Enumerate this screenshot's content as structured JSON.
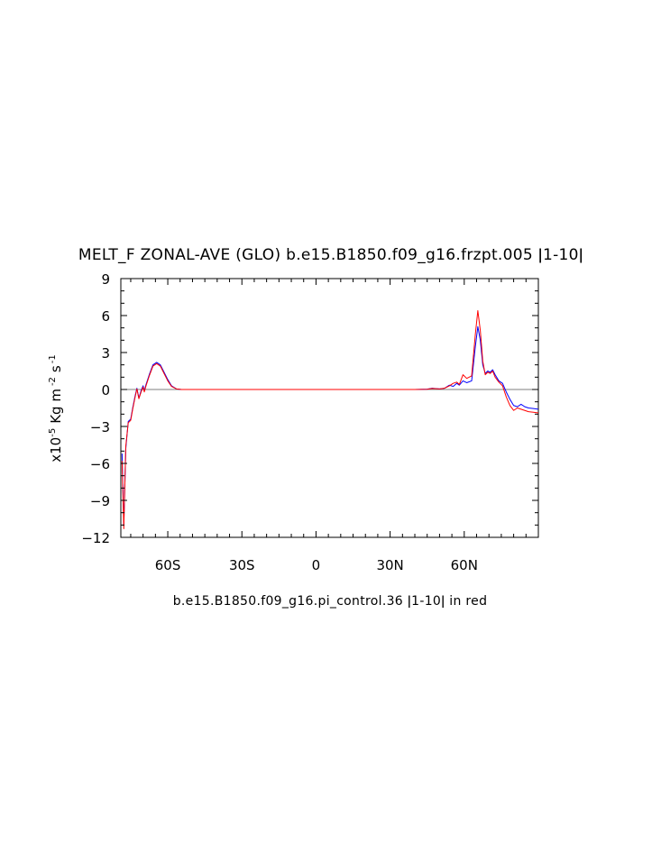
{
  "chart_data": {
    "type": "line",
    "title": "MELT_F ZONAL-AVE (GLO) b.e15.B1850.f09_g16.frzpt.005 ǀ1-10ǀ",
    "caption": "b.e15.B1850.f09_g16.pi_control.36 ǀ1-10ǀ in red",
    "ylabel": {
      "prefix": "x10",
      "exp": "-5",
      "units": "Kg m",
      "units_exp": "-2",
      "time_unit": "s",
      "time_exp": "-1"
    },
    "xlim": [
      -79,
      90
    ],
    "ylim": [
      -12,
      9
    ],
    "x_ticks": [
      {
        "value": -60,
        "label": "60S"
      },
      {
        "value": -30,
        "label": "30S"
      },
      {
        "value": 0,
        "label": "0"
      },
      {
        "value": 30,
        "label": "30N"
      },
      {
        "value": 60,
        "label": "60N"
      }
    ],
    "y_ticks": [
      {
        "value": 9,
        "label": "9"
      },
      {
        "value": 6,
        "label": "6"
      },
      {
        "value": 3,
        "label": "3"
      },
      {
        "value": 0,
        "label": "0"
      },
      {
        "value": -3,
        "label": "-3"
      },
      {
        "value": -6,
        "label": "-6"
      },
      {
        "value": -9,
        "label": "-9"
      },
      {
        "value": -12,
        "label": "-12"
      }
    ],
    "zero_line": true,
    "series": [
      {
        "color": "#0000ff",
        "points": [
          [
            -78.5,
            -5.2
          ],
          [
            -77.8,
            -11.0
          ],
          [
            -77.0,
            -4.8
          ],
          [
            -76.0,
            -2.6
          ],
          [
            -75.0,
            -2.4
          ],
          [
            -74.2,
            -1.5
          ],
          [
            -73.2,
            -0.5
          ],
          [
            -72.5,
            0.1
          ],
          [
            -71.7,
            -0.7
          ],
          [
            -70.8,
            -0.1
          ],
          [
            -70.0,
            0.3
          ],
          [
            -69.5,
            -0.1
          ],
          [
            -68.8,
            0.4
          ],
          [
            -67.5,
            1.2
          ],
          [
            -66.0,
            2.0
          ],
          [
            -64.5,
            2.2
          ],
          [
            -63.0,
            2.0
          ],
          [
            -61.5,
            1.4
          ],
          [
            -60.0,
            0.8
          ],
          [
            -58.5,
            0.3
          ],
          [
            -56.5,
            0.05
          ],
          [
            -54.5,
            0.0
          ],
          [
            -40,
            0.0
          ],
          [
            -20,
            0.0
          ],
          [
            0,
            0.0
          ],
          [
            20,
            0.0
          ],
          [
            40,
            0.0
          ],
          [
            45,
            0.03
          ],
          [
            47,
            0.1
          ],
          [
            50,
            0.05
          ],
          [
            52,
            0.1
          ],
          [
            54,
            0.35
          ],
          [
            55.5,
            0.25
          ],
          [
            57,
            0.5
          ],
          [
            58,
            0.35
          ],
          [
            59.5,
            0.7
          ],
          [
            61,
            0.55
          ],
          [
            63,
            0.7
          ],
          [
            64.5,
            3.5
          ],
          [
            65.5,
            5.1
          ],
          [
            66.5,
            4.0
          ],
          [
            67.5,
            2.0
          ],
          [
            68.5,
            1.3
          ],
          [
            69.5,
            1.5
          ],
          [
            70.5,
            1.4
          ],
          [
            71.5,
            1.6
          ],
          [
            72.5,
            1.2
          ],
          [
            74,
            0.7
          ],
          [
            75.5,
            0.5
          ],
          [
            77,
            -0.2
          ],
          [
            78.5,
            -0.8
          ],
          [
            80,
            -1.3
          ],
          [
            81.5,
            -1.4
          ],
          [
            83,
            -1.2
          ],
          [
            84.5,
            -1.4
          ],
          [
            86,
            -1.5
          ],
          [
            88,
            -1.55
          ],
          [
            90,
            -1.6
          ]
        ]
      },
      {
        "color": "#ff0000",
        "points": [
          [
            -78.5,
            -5.8
          ],
          [
            -77.8,
            -11.3
          ],
          [
            -77.0,
            -4.6
          ],
          [
            -76.0,
            -2.7
          ],
          [
            -75.0,
            -2.5
          ],
          [
            -74.2,
            -1.6
          ],
          [
            -73.2,
            -0.6
          ],
          [
            -72.5,
            0.05
          ],
          [
            -71.7,
            -0.75
          ],
          [
            -70.8,
            -0.2
          ],
          [
            -70.0,
            0.2
          ],
          [
            -69.5,
            -0.2
          ],
          [
            -68.8,
            0.3
          ],
          [
            -67.5,
            1.1
          ],
          [
            -66.0,
            1.9
          ],
          [
            -64.5,
            2.1
          ],
          [
            -63.0,
            1.9
          ],
          [
            -61.5,
            1.3
          ],
          [
            -60.0,
            0.7
          ],
          [
            -58.5,
            0.25
          ],
          [
            -56.5,
            0.05
          ],
          [
            -54.5,
            0.0
          ],
          [
            -40,
            0.0
          ],
          [
            -20,
            0.0
          ],
          [
            0,
            0.0
          ],
          [
            20,
            0.0
          ],
          [
            40,
            0.0
          ],
          [
            45,
            0.02
          ],
          [
            47,
            0.08
          ],
          [
            50,
            0.05
          ],
          [
            52,
            0.1
          ],
          [
            54,
            0.3
          ],
          [
            55.5,
            0.5
          ],
          [
            57,
            0.6
          ],
          [
            58,
            0.4
          ],
          [
            59.5,
            1.2
          ],
          [
            61,
            0.9
          ],
          [
            63,
            1.1
          ],
          [
            64.5,
            4.5
          ],
          [
            65.5,
            6.4
          ],
          [
            66.5,
            4.8
          ],
          [
            67.5,
            2.3
          ],
          [
            68.5,
            1.2
          ],
          [
            69.5,
            1.4
          ],
          [
            70.5,
            1.3
          ],
          [
            71.5,
            1.5
          ],
          [
            72.5,
            1.0
          ],
          [
            74,
            0.6
          ],
          [
            75.5,
            0.3
          ],
          [
            77,
            -0.6
          ],
          [
            78.5,
            -1.3
          ],
          [
            80,
            -1.7
          ],
          [
            81.5,
            -1.5
          ],
          [
            83,
            -1.6
          ],
          [
            84.5,
            -1.7
          ],
          [
            86,
            -1.8
          ],
          [
            88,
            -1.85
          ],
          [
            90,
            -1.9
          ]
        ]
      }
    ]
  }
}
